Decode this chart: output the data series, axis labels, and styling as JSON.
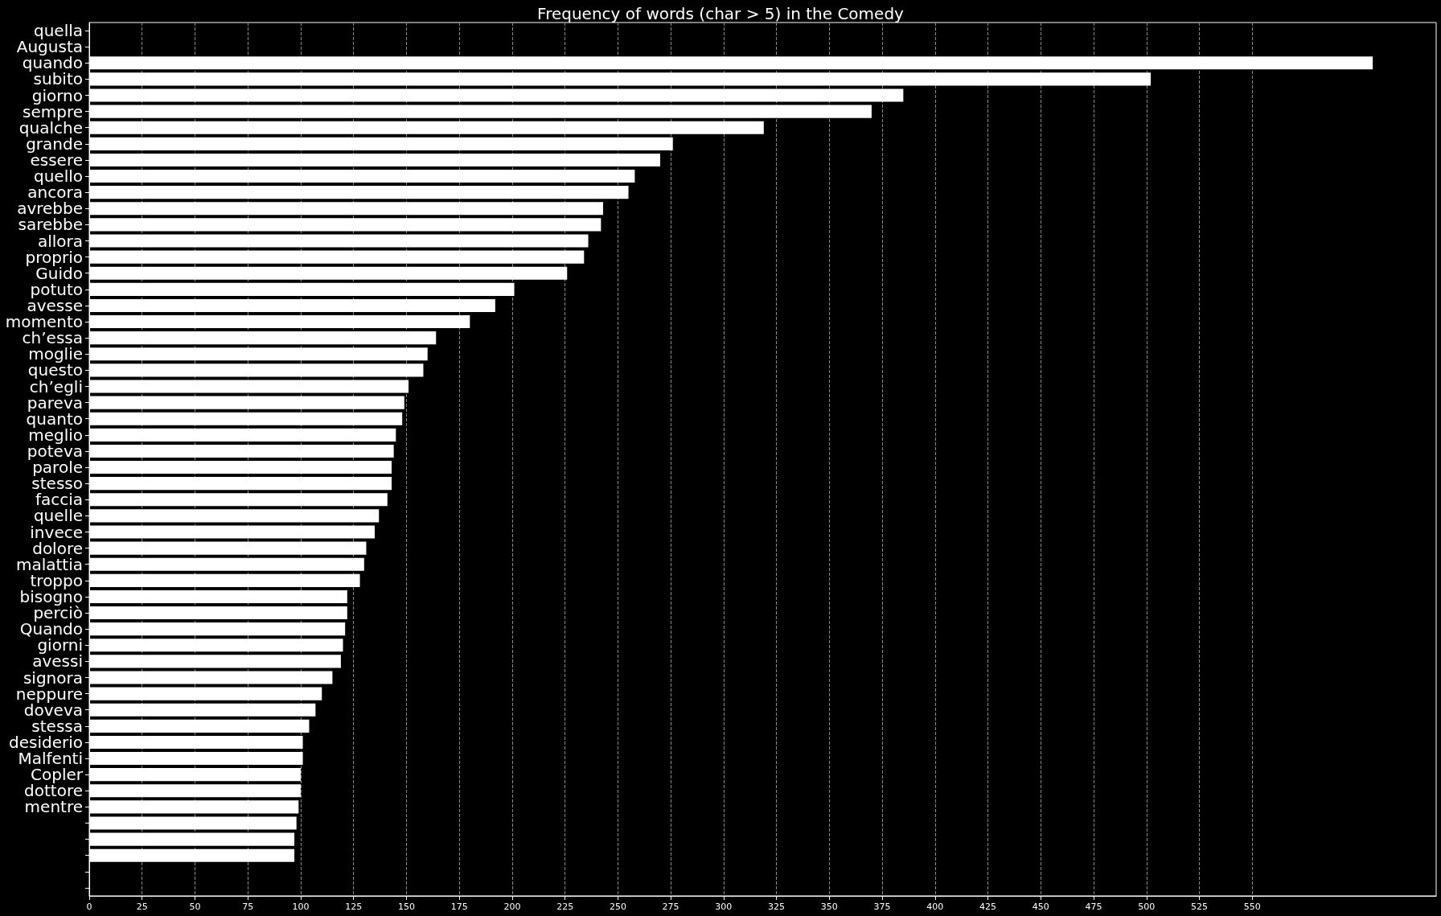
{
  "chart_data": {
    "type": "bar",
    "orientation": "horizontal",
    "title": "Frequency of words (char > 5) in the Comedy",
    "categories": [
      "quella",
      "Augusta",
      "quando",
      "subito",
      "giorno",
      "sempre",
      "qualche",
      "grande",
      "essere",
      "quello",
      "ancora",
      "avrebbe",
      "sarebbe",
      "allora",
      "proprio",
      "Guido",
      "potuto",
      "avesse",
      "momento",
      "ch’essa",
      "moglie",
      "questo",
      "ch’egli",
      "pareva",
      "quanto",
      "meglio",
      "poteva",
      "parole",
      "stesso",
      "faccia",
      "quelle",
      "invece",
      "dolore",
      "malattia",
      "troppo",
      "bisogno",
      "perciò",
      "Quando",
      "giorni",
      "avessi",
      "signora",
      "neppure",
      "doveva",
      "stessa",
      "desiderio",
      "Malfenti",
      "Copler",
      "dottore",
      "mentre",
      null,
      null,
      null,
      null,
      null
    ],
    "values": [
      null,
      null,
      607,
      502,
      385,
      370,
      319,
      276,
      270,
      258,
      255,
      243,
      242,
      236,
      234,
      226,
      201,
      192,
      180,
      164,
      160,
      158,
      151,
      149,
      148,
      145,
      144,
      143,
      143,
      141,
      137,
      135,
      131,
      130,
      128,
      122,
      122,
      121,
      120,
      119,
      115,
      110,
      107,
      104,
      101,
      101,
      100,
      100,
      99,
      98,
      97,
      97,
      null,
      null
    ],
    "color": "#ffffff",
    "xlim": [
      0,
      637
    ],
    "xticks": [
      0,
      25,
      50,
      75,
      100,
      125,
      150,
      175,
      200,
      225,
      250,
      275,
      300,
      325,
      350,
      375,
      400,
      425,
      450,
      475,
      500,
      525,
      550
    ],
    "grid": "x"
  }
}
